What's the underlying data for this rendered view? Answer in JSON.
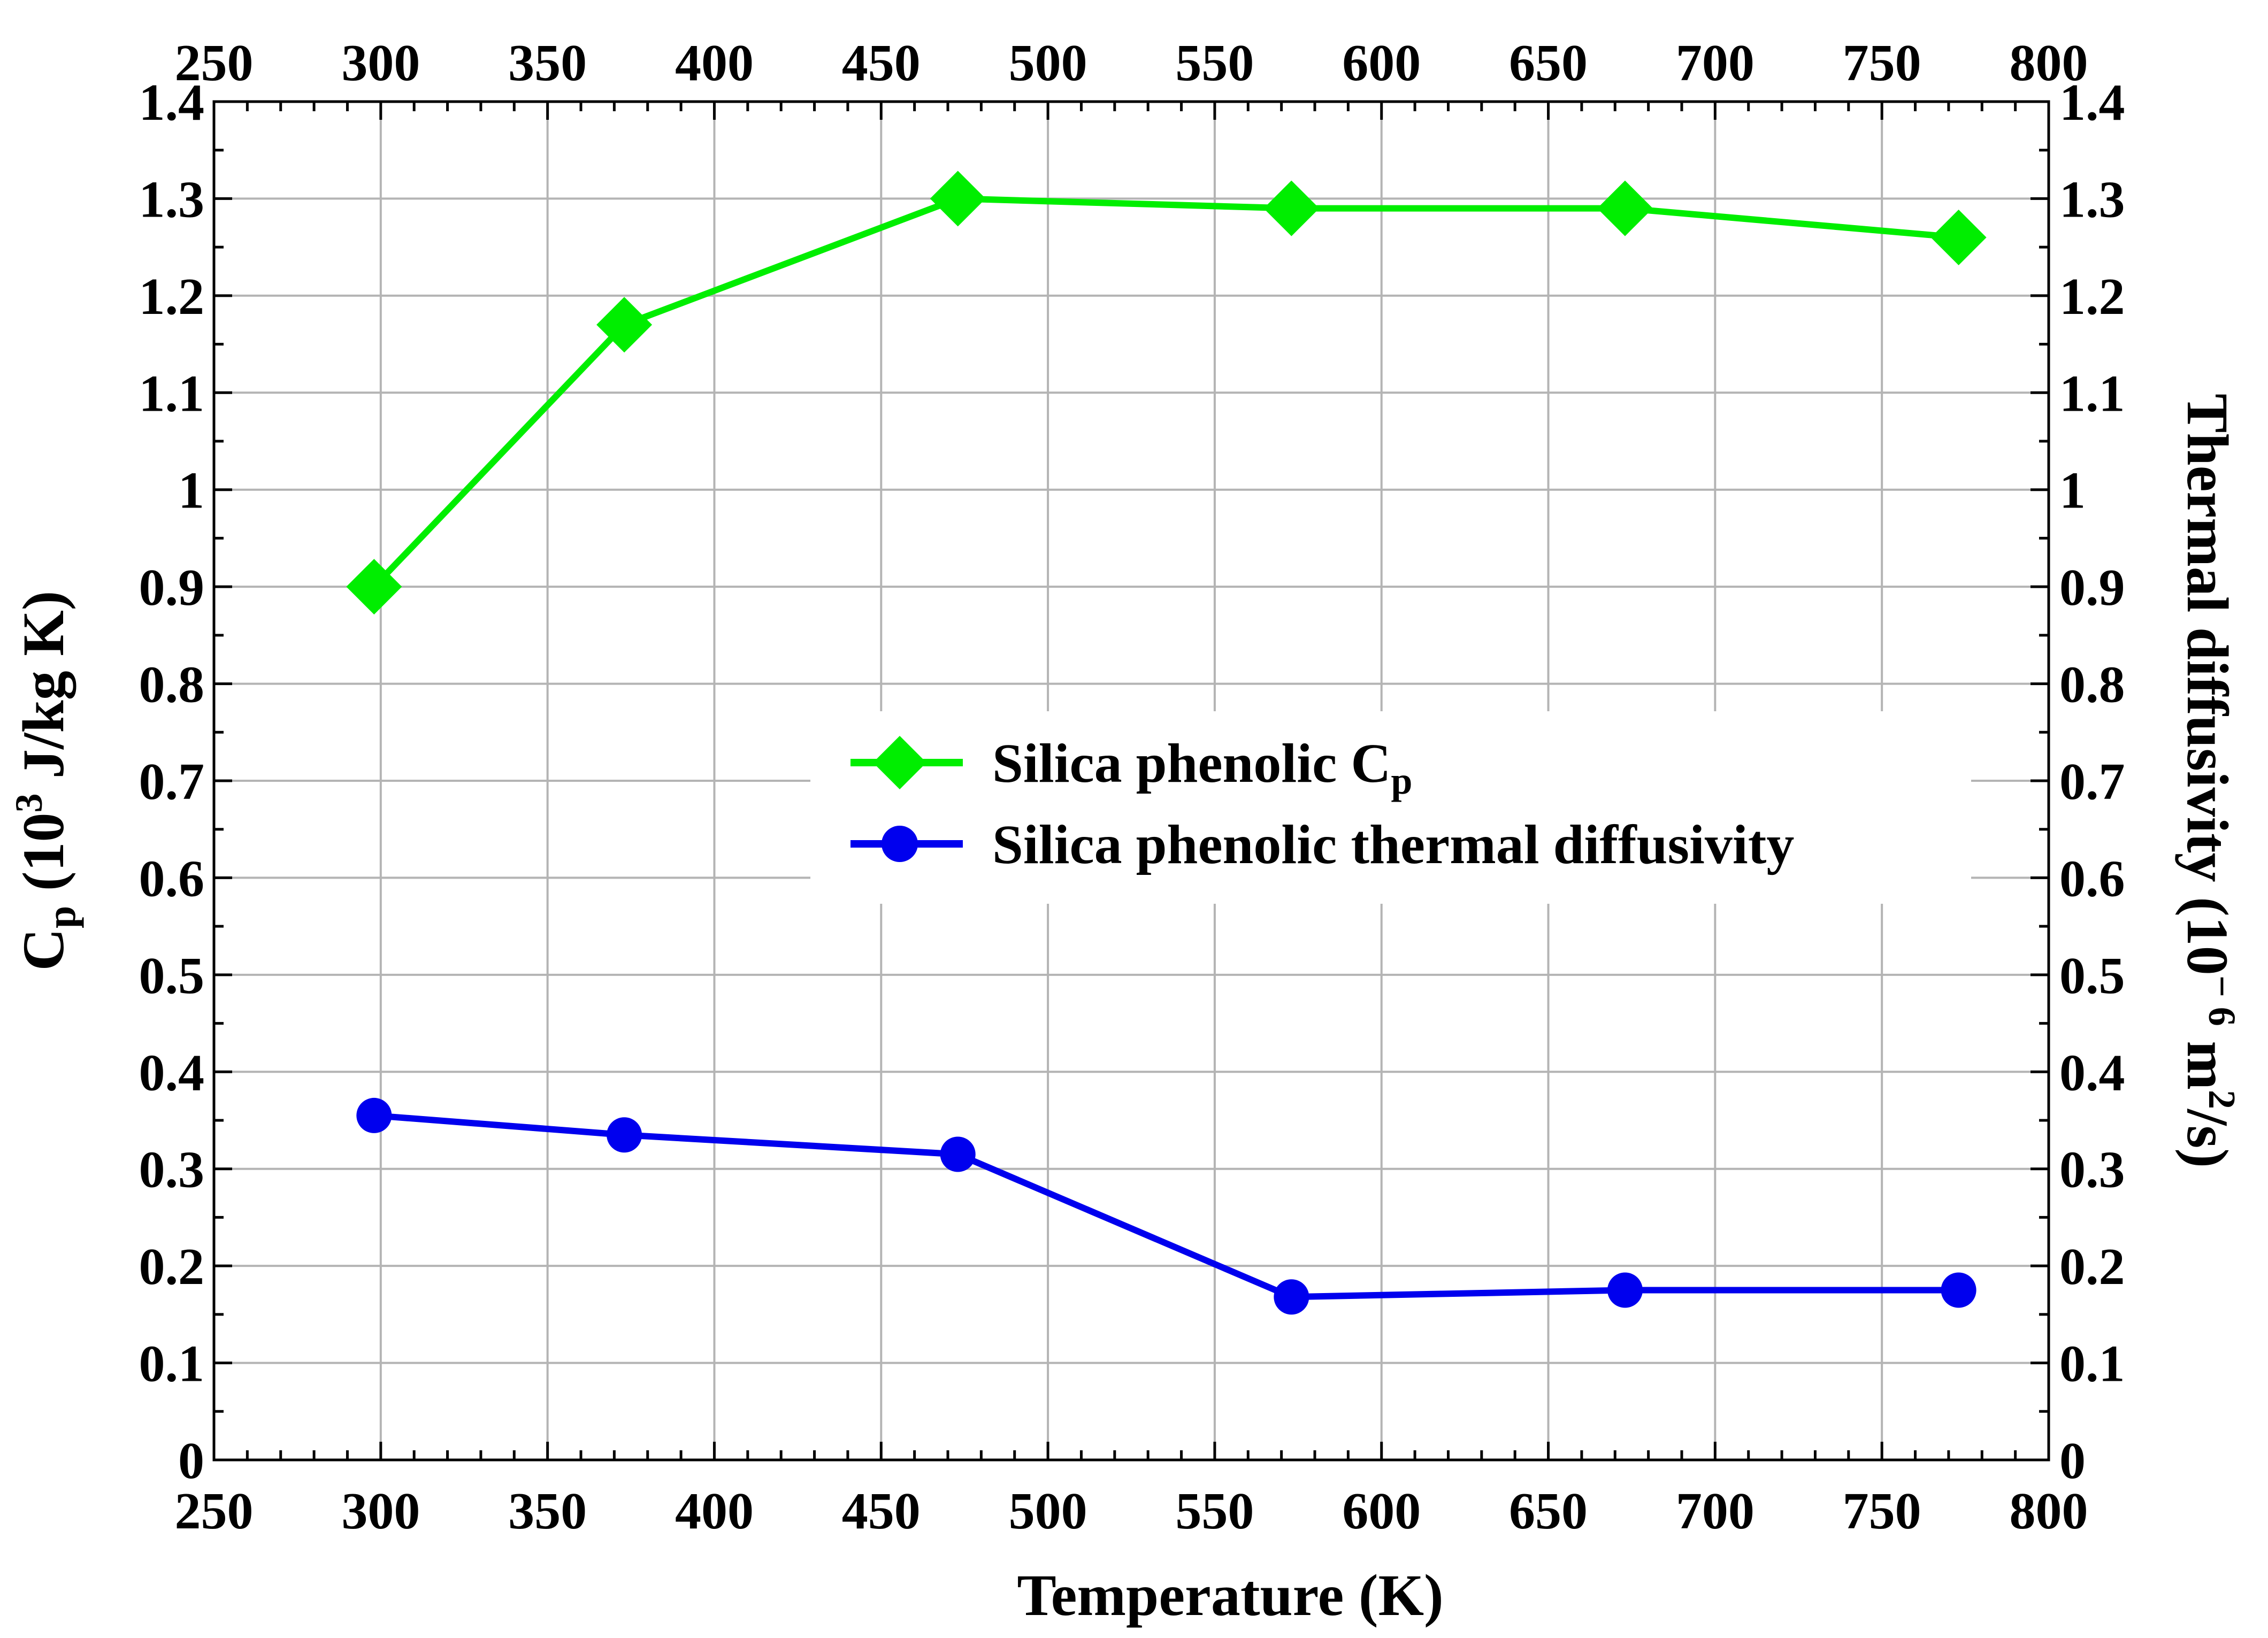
{
  "chart_data": {
    "type": "line",
    "xlabel": "Temperature (K)",
    "ylabel_left": {
      "prefix": "C",
      "sub": "p",
      "mid": " (10",
      "sup": "3",
      "suffix": " J/kg K)"
    },
    "ylabel_right": {
      "prefix": "Thermal diffusivity (10",
      "sup": "− 6",
      "mid": " m",
      "sup2": "2",
      "suffix": "/s)"
    },
    "xlim": [
      250,
      800
    ],
    "ylim": [
      0,
      1.4
    ],
    "x_ticks": [
      "250",
      "300",
      "350",
      "400",
      "450",
      "500",
      "550",
      "600",
      "650",
      "700",
      "750",
      "800"
    ],
    "y_ticks": [
      "0",
      "0.1",
      "0.2",
      "0.3",
      "0.4",
      "0.5",
      "0.6",
      "0.7",
      "0.8",
      "0.9",
      "1",
      "1.1",
      "1.2",
      "1.3",
      "1.4"
    ],
    "grid": true,
    "legend_position": "center-right",
    "series": [
      {
        "name": "Silica phenolic Cp",
        "legend": {
          "main": "Silica phenolic C",
          "sub": "p"
        },
        "color": "#00ee00",
        "marker": "diamond",
        "x": [
          298,
          373,
          473,
          573,
          673,
          773
        ],
        "y": [
          0.9,
          1.17,
          1.3,
          1.29,
          1.29,
          1.26
        ]
      },
      {
        "name": "Silica phenolic thermal diffusivity",
        "legend": {
          "main": "Silica phenolic thermal diffusivity",
          "sub": ""
        },
        "color": "#0000ee",
        "marker": "circle",
        "x": [
          298,
          373,
          473,
          573,
          673,
          773
        ],
        "y": [
          0.355,
          0.335,
          0.315,
          0.168,
          0.175,
          0.175
        ]
      }
    ]
  }
}
